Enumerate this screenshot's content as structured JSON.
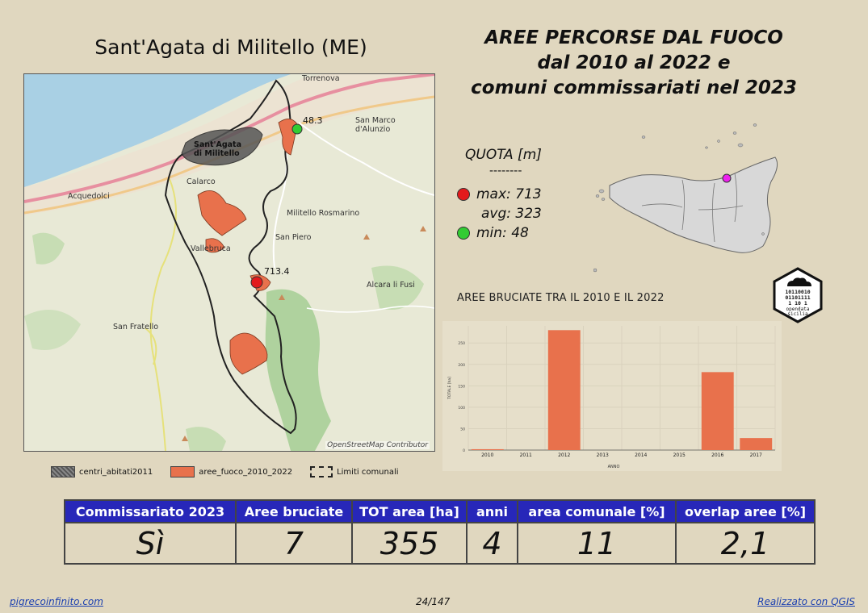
{
  "map": {
    "title": "Sant'Agata di Militello (ME)",
    "attribution": "OpenStreetMap Contributor",
    "labels": {
      "torrenova": "Torrenova",
      "san_marco": "San Marco\nd'Alunzio",
      "acquedolci": "Acquedolci",
      "santagata": "Sant'Agata\ndi Militello",
      "calarco": "Calarco",
      "militello": "Militello Rosmarino",
      "san_piero": "San Piero",
      "vallebruca": "Vallebruca",
      "alcara": "Alcara li Fusi",
      "san_fratello": "San Fratello"
    },
    "markers": {
      "max_label": "713.4",
      "min_label": "48.3"
    }
  },
  "legend": {
    "items": [
      {
        "label": "centri_abitati2011"
      },
      {
        "label": "aree_fuoco_2010_2022"
      },
      {
        "label": "Limiti comunali"
      }
    ]
  },
  "main_title": {
    "line1": "AREE PERCORSE DAL FUOCO",
    "line2": "dal 2010 al 2022 e",
    "line3": "comuni commissariati nel 2023"
  },
  "quota": {
    "title": "QUOTA [m]",
    "separator": "--------",
    "max": "max: 713",
    "avg": "avg: 323",
    "min": "min: 48"
  },
  "colors": {
    "max_dot": "#e31a1c",
    "min_dot": "#33cc33",
    "fire": "#e8714c",
    "header_bg": "#2727b9",
    "sicily_marker": "#ee22ee"
  },
  "chart_title": "AREE BRUCIATE TRA IL 2010 E IL 2022",
  "chart_data": {
    "type": "bar",
    "categories": [
      "2010",
      "2011",
      "2012",
      "2013",
      "2014",
      "2015",
      "2016",
      "2017"
    ],
    "values": [
      2,
      0,
      280,
      0,
      0,
      0,
      182,
      28
    ],
    "xlabel": "ANNO",
    "ylabel": "TOTALE [ha]",
    "ylim": [
      0,
      290
    ],
    "yticks": [
      0,
      50,
      100,
      150,
      200,
      250
    ],
    "color": "#e8714c"
  },
  "logo": {
    "lines": [
      "10110010",
      "01101111",
      "1  10 1"
    ],
    "text1": "opendata",
    "text2": "sicilia"
  },
  "table": {
    "headers": [
      "Commissariato 2023",
      "Aree bruciate",
      "TOT area [ha]",
      "anni",
      "area comunale [%]",
      "overlap aree [%]"
    ],
    "values": [
      "Sì",
      "7",
      "355",
      "4",
      "11",
      "2,1"
    ]
  },
  "footer": {
    "left": "pigrecoinfinito.com",
    "center": "24/147",
    "right": "Realizzato con QGIS"
  }
}
